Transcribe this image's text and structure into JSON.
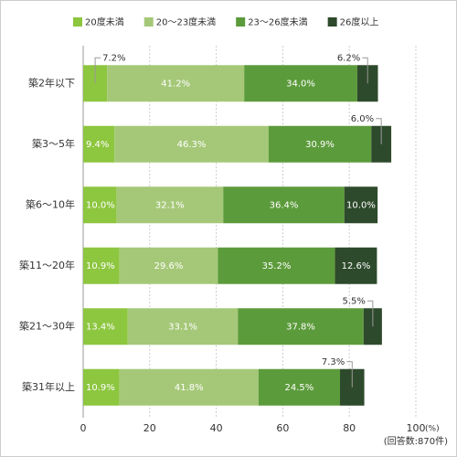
{
  "chart_data": {
    "type": "stacked-barh",
    "categories": [
      "築2年以下",
      "築3～5年",
      "築6～10年",
      "築11～20年",
      "築21～30年",
      "築31年以上"
    ],
    "series": [
      {
        "name": "20度未満",
        "color": "#8dc63f",
        "values": [
          7.2,
          9.4,
          10.0,
          10.9,
          13.4,
          10.9
        ],
        "value_labels": [
          "7.2%",
          "9.4%",
          "10.0%",
          "10.9%",
          "13.4%",
          "10.9%"
        ]
      },
      {
        "name": "20～23度未満",
        "color": "#a5c878",
        "values": [
          41.2,
          46.3,
          32.1,
          29.6,
          33.1,
          41.8
        ],
        "value_labels": [
          "41.2%",
          "46.3%",
          "32.1%",
          "29.6%",
          "33.1%",
          "41.8%"
        ]
      },
      {
        "name": "23～26度未満",
        "color": "#5c9b3b",
        "values": [
          34.0,
          30.9,
          36.4,
          35.2,
          37.8,
          24.5
        ],
        "value_labels": [
          "34.0%",
          "30.9%",
          "36.4%",
          "35.2%",
          "37.8%",
          "24.5%"
        ]
      },
      {
        "name": "26度以上",
        "color": "#2e4a2c",
        "values": [
          6.2,
          6.0,
          10.0,
          12.6,
          5.5,
          7.3
        ],
        "value_labels": [
          "6.2%",
          "6.0%",
          "10.0%",
          "12.6%",
          "5.5%",
          "7.3%"
        ]
      }
    ],
    "xlim": [
      0,
      100
    ],
    "xticks": [
      0,
      20,
      40,
      60,
      80,
      100
    ],
    "grid": true,
    "x_label": "(%)",
    "note": "(回答数:870件)"
  }
}
